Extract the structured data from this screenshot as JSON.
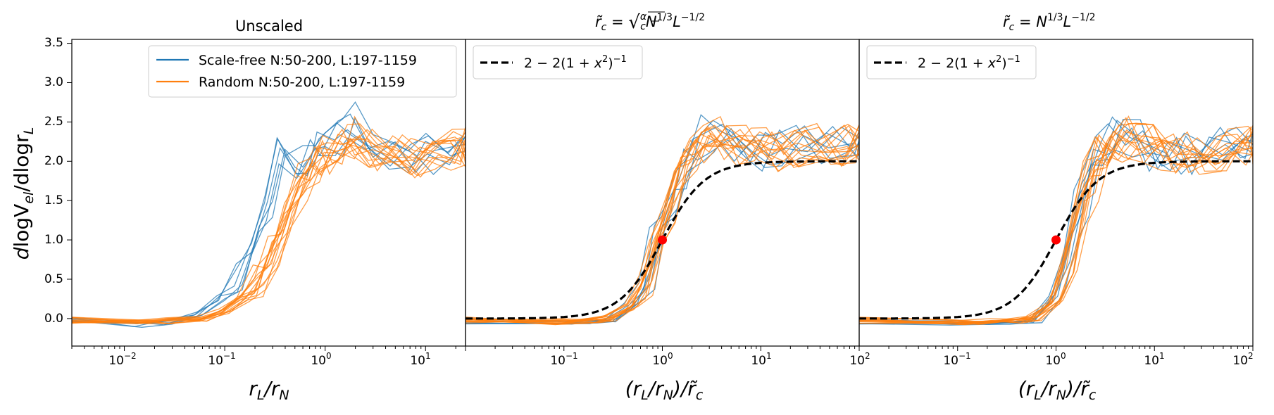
{
  "chart_data": [
    {
      "type": "line",
      "title": "Unscaled",
      "xlabel": "r_L/r_N",
      "ylabel": "dlogV_el/dlogr_L",
      "xscale": "log",
      "xlim": [
        0.003,
        25
      ],
      "ylim": [
        -0.35,
        3.55
      ],
      "xticks": [
        "10^-2",
        "10^-1",
        "10^0",
        "10^1"
      ],
      "yticks": [
        "0.0",
        "0.5",
        "1.0",
        "1.5",
        "2.0",
        "2.5",
        "3.0",
        "3.5"
      ],
      "legend": {
        "placement": "top-right",
        "entries": [
          "Scale-free N:50-200, L:197-1159",
          "Random N:50-200, L:197-1159"
        ]
      },
      "series": [
        {
          "name": "Scale-free N:50-200, L:197-1159",
          "color": "#1f77b4",
          "x": [
            0.003,
            0.015,
            0.03,
            0.06,
            0.1,
            0.15,
            0.22,
            0.3,
            0.4,
            0.6,
            0.8,
            1.0,
            1.5,
            2.0,
            3.0,
            5.0,
            8.0,
            12.0,
            20.0,
            25.0
          ],
          "y": [
            -0.03,
            -0.08,
            -0.05,
            0.05,
            0.25,
            0.55,
            1.0,
            1.45,
            2.2,
            2.05,
            2.0,
            2.1,
            2.3,
            2.55,
            2.2,
            2.15,
            2.05,
            2.1,
            2.2,
            2.4
          ]
        },
        {
          "name": "Random N:50-200, L:197-1159",
          "color": "#ff7f0e",
          "x": [
            0.003,
            0.015,
            0.03,
            0.06,
            0.1,
            0.15,
            0.22,
            0.3,
            0.4,
            0.6,
            0.8,
            1.0,
            1.5,
            2.0,
            3.0,
            5.0,
            8.0,
            12.0,
            20.0,
            25.0
          ],
          "y": [
            -0.02,
            -0.05,
            -0.03,
            0.0,
            0.1,
            0.25,
            0.5,
            0.85,
            1.25,
            1.75,
            2.0,
            2.1,
            2.2,
            2.3,
            2.15,
            2.1,
            2.05,
            2.1,
            2.15,
            2.2
          ]
        }
      ]
    },
    {
      "type": "line",
      "title": "r̃_c = sqrt(α/c) N^(1/3) L^(-1/2)",
      "xlabel": "(r_L/r_N)/r̃_c",
      "xscale": "log",
      "xlim": [
        0.01,
        100
      ],
      "ylim": [
        -0.35,
        3.55
      ],
      "xticks": [
        "10^-1",
        "10^0",
        "10^1",
        "10^2"
      ],
      "legend": {
        "placement": "top-left",
        "entries": [
          "2 − 2(1 + x²)⁻¹"
        ]
      },
      "series": [
        {
          "name": "Scale-free N:50-200, L:197-1159",
          "color": "#1f77b4",
          "x": [
            0.01,
            0.1,
            0.2,
            0.3,
            0.5,
            0.7,
            0.9,
            1.2,
            1.6,
            2.2,
            3.0,
            4.5,
            7.0,
            10,
            15,
            25,
            45,
            80,
            100
          ],
          "y": [
            -0.03,
            -0.05,
            -0.05,
            -0.03,
            0.2,
            0.5,
            1.0,
            1.5,
            1.9,
            2.2,
            2.35,
            2.2,
            2.1,
            2.1,
            2.15,
            2.2,
            2.25,
            2.3,
            2.3
          ]
        },
        {
          "name": "Random N:50-200, L:197-1159",
          "color": "#ff7f0e",
          "x": [
            0.01,
            0.1,
            0.2,
            0.3,
            0.5,
            0.7,
            0.9,
            1.2,
            1.6,
            2.2,
            3.0,
            4.5,
            7.0,
            10,
            15,
            25,
            45,
            80,
            100
          ],
          "y": [
            -0.02,
            -0.04,
            -0.03,
            0.0,
            0.15,
            0.4,
            0.85,
            1.4,
            1.85,
            2.1,
            2.25,
            2.3,
            2.2,
            2.15,
            2.1,
            2.15,
            2.2,
            2.2,
            2.2
          ]
        },
        {
          "name": "2 − 2(1 + x²)⁻¹",
          "color": "#000000",
          "style": "dashed",
          "function": "2-2/(1+x^2)"
        }
      ],
      "marker": {
        "x": 1.0,
        "y": 1.0,
        "color": "#ff0000"
      }
    },
    {
      "type": "line",
      "title": "r̃_c = N^(1/3) L^(-1/2)",
      "xlabel": "(r_L/r_N)/r̃_c",
      "xscale": "log",
      "xlim": [
        0.01,
        100
      ],
      "ylim": [
        -0.35,
        3.55
      ],
      "xticks": [
        "10^-1",
        "10^0",
        "10^1",
        "10^2"
      ],
      "legend": {
        "placement": "top-left",
        "entries": [
          "2 − 2(1 + x²)⁻¹"
        ]
      },
      "series": [
        {
          "name": "Scale-free N:50-200, L:197-1159",
          "color": "#1f77b4",
          "x": [
            0.01,
            0.1,
            0.2,
            0.4,
            0.6,
            1.0,
            1.4,
            1.8,
            2.3,
            3.0,
            4.0,
            6.0,
            9.0,
            14,
            20,
            30,
            50,
            80,
            100
          ],
          "y": [
            -0.03,
            -0.05,
            -0.06,
            -0.05,
            -0.02,
            0.3,
            0.9,
            1.5,
            1.9,
            2.2,
            2.35,
            2.25,
            2.15,
            2.1,
            2.1,
            2.15,
            2.2,
            2.3,
            2.3
          ]
        },
        {
          "name": "Random N:50-200, L:197-1159",
          "color": "#ff7f0e",
          "x": [
            0.01,
            0.1,
            0.2,
            0.4,
            0.6,
            1.0,
            1.4,
            1.8,
            2.3,
            3.0,
            4.0,
            6.0,
            9.0,
            14,
            20,
            30,
            50,
            80,
            100
          ],
          "y": [
            -0.02,
            -0.04,
            -0.04,
            -0.03,
            0.0,
            0.2,
            0.7,
            1.3,
            1.75,
            2.1,
            2.25,
            2.3,
            2.2,
            2.15,
            2.1,
            2.1,
            2.15,
            2.2,
            2.2
          ]
        },
        {
          "name": "2 − 2(1 + x²)⁻¹",
          "color": "#000000",
          "style": "dashed",
          "function": "2-2/(1+x^2)"
        }
      ],
      "marker": {
        "x": 1.0,
        "y": 1.0,
        "color": "#ff0000"
      }
    }
  ],
  "labels": {
    "panel1_title": "Unscaled",
    "xlabel1": "r",
    "xlabel1_sub1": "L",
    "xlabel1_slash": "/r",
    "xlabel1_sub2": "N",
    "xlabel23_open": "(r",
    "xlabel23_sub1": "L",
    "xlabel23_mid": "/r",
    "xlabel23_sub2": "N",
    "xlabel23_close": ")/r̃",
    "xlabel23_sub3": "c",
    "ylabel_d": "d",
    "ylabel_logV": "logV",
    "ylabel_el": "el",
    "ylabel_mid": "/dlogr",
    "ylabel_L": "L",
    "title_rc": "r̃",
    "title_c": "c",
    "title_eq": " = ",
    "title_alpha": "α",
    "title_cfrac": "c",
    "title_N": "N",
    "title_Nexp": "1/3",
    "title_L": "L",
    "title_Lexp": "−1/2",
    "legend_sf": "Scale-free N:50-200, L:197-1159",
    "legend_rand": "Random N:50-200, L:197-1159",
    "legend_fit_pre": "2 − 2(1 + ",
    "legend_fit_x": "x",
    "legend_fit_2": "2",
    "legend_fit_mid": ")",
    "legend_fit_m1": "−1",
    "tick_base": "10",
    "exp_m2": "−2",
    "exp_m1": "−1",
    "exp_0": "0",
    "exp_1": "1",
    "exp_2": "2",
    "y_00": "0.0",
    "y_05": "0.5",
    "y_10": "1.0",
    "y_15": "1.5",
    "y_20": "2.0",
    "y_25": "2.5",
    "y_30": "3.0",
    "y_35": "3.5"
  }
}
